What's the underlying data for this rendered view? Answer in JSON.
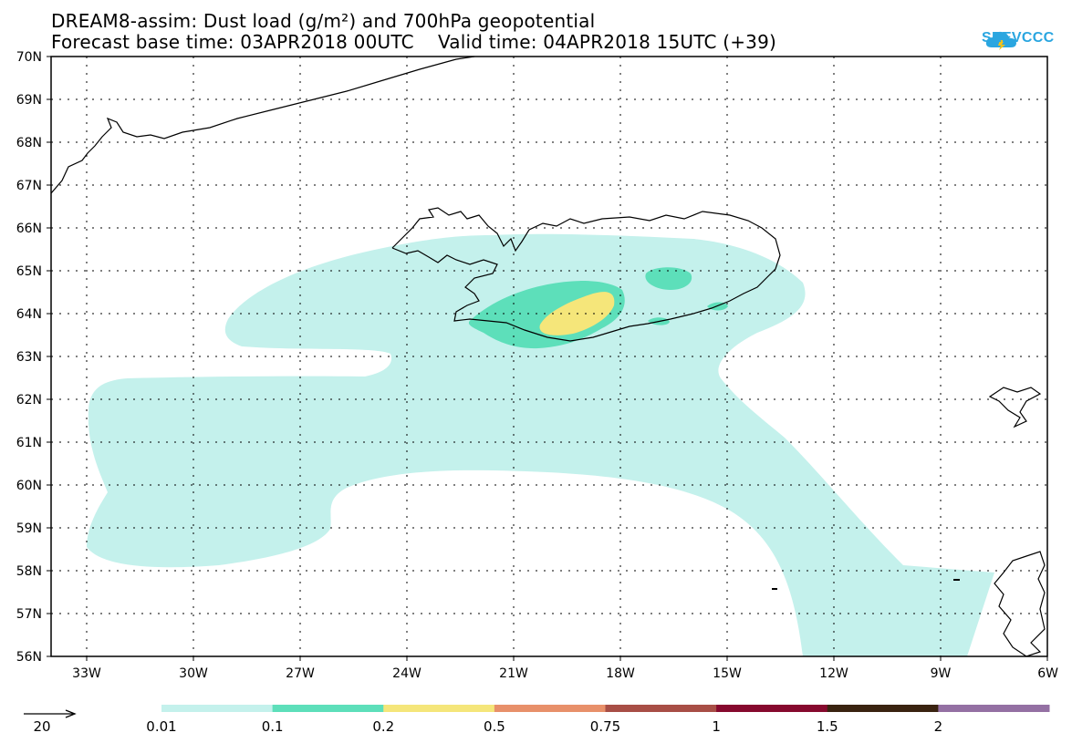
{
  "title": {
    "line1": "DREAM8-assim: Dust load (g/m²) and 700hPa geopotential",
    "line2": "Forecast base time: 03APR2018 00UTC    Valid time: 04APR2018 15UTC (+39)"
  },
  "logo": {
    "text": "SEEVCCC",
    "icon": "cloud-icon",
    "color": "#2aa6e0"
  },
  "axes": {
    "lat_labels": [
      "70N",
      "69N",
      "68N",
      "67N",
      "66N",
      "65N",
      "64N",
      "63N",
      "62N",
      "61N",
      "60N",
      "59N",
      "58N",
      "57N",
      "56N"
    ],
    "lon_labels": [
      "33W",
      "30W",
      "27W",
      "24W",
      "21W",
      "18W",
      "15W",
      "12W",
      "9W",
      "6W"
    ]
  },
  "wind_vector": {
    "label": "20"
  },
  "colorbar": {
    "labels": [
      "0.01",
      "0.1",
      "0.2",
      "0.5",
      "0.75",
      "1",
      "1.5",
      "2"
    ],
    "colors": [
      "#c4f1ec",
      "#5ddfba",
      "#f5e67a",
      "#e8906a",
      "#a84e46",
      "#86092e",
      "#3a2310",
      "#9470a3"
    ]
  }
}
